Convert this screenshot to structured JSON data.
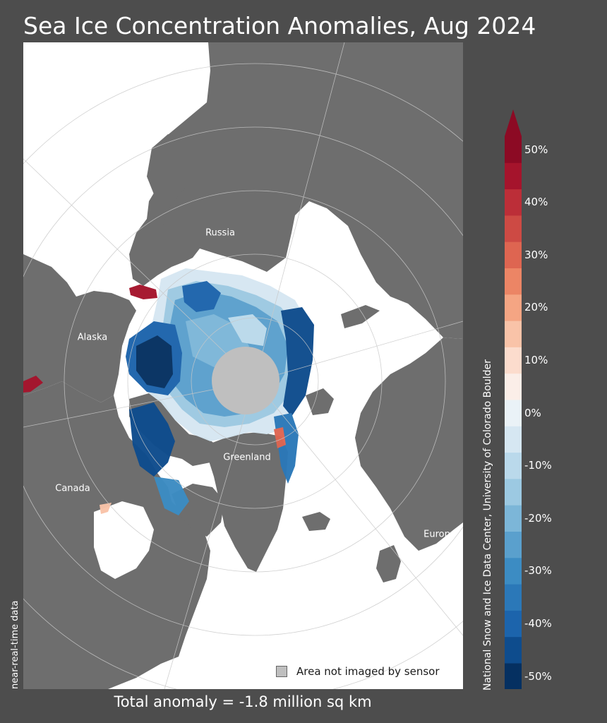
{
  "title": "Sea Ice Concentration Anomalies, Aug 2024",
  "labels": {
    "russia": "Russia",
    "alaska": "Alaska",
    "canada": "Canada",
    "greenland": "Greenland",
    "europe": "Europe"
  },
  "legend": {
    "not_imaged": "Area not imaged by sensor"
  },
  "total_anomaly": "Total anomaly = -1.8 million sq km",
  "side_text": "near-real-time data",
  "credit": "National Snow and Ice Data Center, University of Colorado Boulder",
  "colors": {
    "background": "#4d4d4d",
    "land": "#6e6e6e",
    "ocean": "#ffffff",
    "pole_hole": "#bfbfbf",
    "graticule": "#c8c8c8"
  },
  "colorbar": {
    "unit": "%",
    "min": -50,
    "max": 50,
    "step": 5,
    "tick_labels": [
      "50%",
      "40%",
      "30%",
      "20%",
      "10%",
      "0%",
      "-10%",
      "-20%",
      "-30%",
      "-40%",
      "-50%"
    ],
    "colors": [
      "#053061",
      "#0e4c8d",
      "#1c64ac",
      "#2b78b8",
      "#3c8cc3",
      "#5aa0cd",
      "#7cb6d8",
      "#9cc9e2",
      "#bad9eb",
      "#d6e7f2",
      "#eaf2f7",
      "#fbeee8",
      "#fcdccd",
      "#f9c3a8",
      "#f5a583",
      "#ec8565",
      "#de6551",
      "#cd4a44",
      "#bc2e38",
      "#a5142c",
      "#8c0a24"
    ]
  }
}
